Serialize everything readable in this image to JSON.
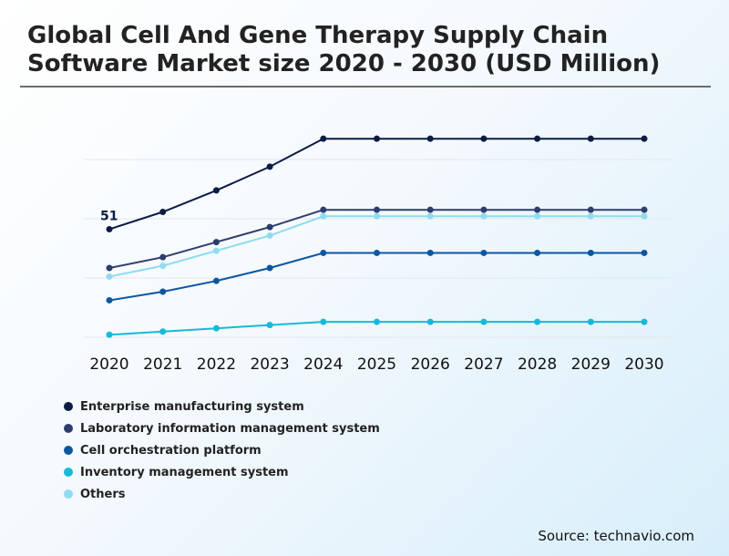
{
  "header": {
    "title": "Global Cell And Gene Therapy Supply Chain Software Market size 2020 - 2030 (USD Million)"
  },
  "source": "Source: technavio.com",
  "chart_data": {
    "type": "line",
    "title": "Global Cell And Gene Therapy Supply Chain Software Market size 2020 - 2030 (USD Million)",
    "categories": [
      "2020",
      "2021",
      "2022",
      "2023",
      "2024",
      "2025",
      "2026",
      "2027",
      "2028",
      "2029",
      "2030"
    ],
    "ylim": [
      0,
      110
    ],
    "grid": true,
    "legend_position": "bottom-left",
    "series": [
      {
        "name": "Enterprise manufacturing system",
        "color": "#0b1c45",
        "values": [
          51,
          59,
          69,
          80,
          93,
          93,
          93,
          93,
          93,
          93,
          93
        ]
      },
      {
        "name": "Laboratory information management system",
        "color": "#2e3d6e",
        "values": [
          33,
          38,
          45,
          52,
          60,
          60,
          60,
          60,
          60,
          60,
          60
        ]
      },
      {
        "name": "Cell orchestration platform",
        "color": "#0d56a0",
        "values": [
          18,
          22,
          27,
          33,
          40,
          40,
          40,
          40,
          40,
          40,
          40
        ]
      },
      {
        "name": "Inventory management system",
        "color": "#17b9d8",
        "values": [
          2,
          3.5,
          5,
          6.5,
          8,
          8,
          8,
          8,
          8,
          8,
          8
        ]
      },
      {
        "name": "Others",
        "color": "#8fdcf0",
        "values": [
          29,
          34,
          41,
          48,
          57,
          57,
          57,
          57,
          57,
          57,
          57
        ]
      }
    ],
    "annotations": [
      {
        "series": 0,
        "index": 0,
        "text": "51"
      }
    ]
  }
}
